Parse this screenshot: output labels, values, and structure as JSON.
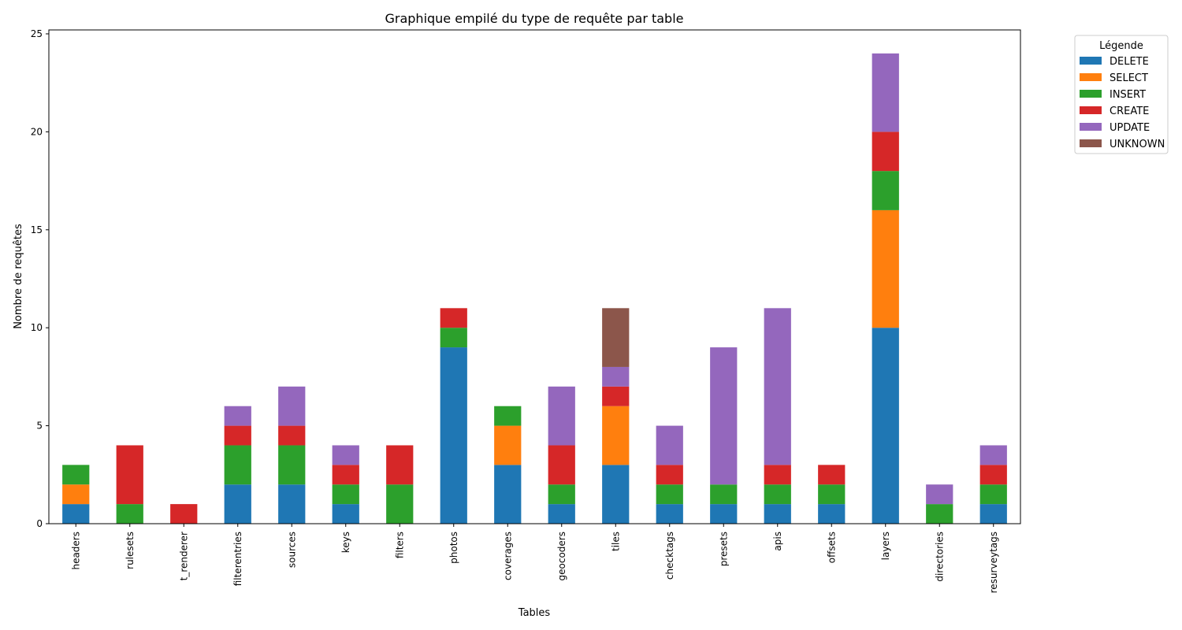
{
  "chart_data": {
    "type": "bar",
    "stacked": true,
    "title": "Graphique empilé du type de requête par table",
    "xlabel": "Tables",
    "ylabel": "Nombre de requêtes",
    "ylim": [
      0,
      25.2
    ],
    "yticks": [
      0,
      5,
      10,
      15,
      20,
      25
    ],
    "grid": false,
    "legend": {
      "title": "Légende",
      "placement": "outside-top-right"
    },
    "categories": [
      "headers",
      "rulesets",
      "t_renderer",
      "filterentries",
      "sources",
      "keys",
      "filters",
      "photos",
      "coverages",
      "geocoders",
      "tiles",
      "checktags",
      "presets",
      "apis",
      "offsets",
      "layers",
      "directories",
      "resurveytags"
    ],
    "series": [
      {
        "name": "DELETE",
        "color": "#1f77b4",
        "values": [
          1,
          0,
          0,
          2,
          2,
          1,
          0,
          9,
          3,
          1,
          3,
          1,
          1,
          1,
          1,
          10,
          0,
          1
        ]
      },
      {
        "name": "SELECT",
        "color": "#ff7f0e",
        "values": [
          1,
          0,
          0,
          0,
          0,
          0,
          0,
          0,
          2,
          0,
          3,
          0,
          0,
          0,
          0,
          6,
          0,
          0
        ]
      },
      {
        "name": "INSERT",
        "color": "#2ca02c",
        "values": [
          1,
          1,
          0,
          2,
          2,
          1,
          2,
          1,
          1,
          1,
          0,
          1,
          1,
          1,
          1,
          2,
          1,
          1
        ]
      },
      {
        "name": "CREATE",
        "color": "#d62728",
        "values": [
          0,
          3,
          1,
          1,
          1,
          1,
          2,
          1,
          0,
          2,
          1,
          1,
          0,
          1,
          1,
          2,
          0,
          1
        ]
      },
      {
        "name": "UPDATE",
        "color": "#9467bd",
        "values": [
          0,
          0,
          0,
          1,
          2,
          1,
          0,
          0,
          0,
          3,
          1,
          2,
          7,
          8,
          0,
          4,
          1,
          1
        ]
      },
      {
        "name": "UNKNOWN",
        "color": "#8c564b",
        "values": [
          0,
          0,
          0,
          0,
          0,
          0,
          0,
          0,
          0,
          0,
          3,
          0,
          0,
          0,
          0,
          0,
          0,
          0
        ]
      }
    ]
  }
}
